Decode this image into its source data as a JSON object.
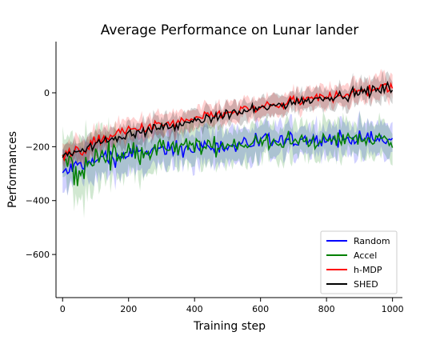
{
  "chart_data": {
    "type": "line",
    "title": "Average Performance on Lunar lander",
    "xlabel": "Training step",
    "ylabel": "Performances",
    "xlim": [
      -20,
      1030
    ],
    "ylim": [
      -760,
      190
    ],
    "xticks": [
      0,
      200,
      400,
      600,
      800,
      1000
    ],
    "yticks": [
      -600,
      -400,
      -200,
      0
    ],
    "xtick_labels": [
      "0",
      "200",
      "400",
      "600",
      "800",
      "1000"
    ],
    "ytick_labels": [
      "−600",
      "−400",
      "−200",
      "0"
    ],
    "grid": false,
    "legend_position": "bottom-right",
    "shaded_band": true,
    "series": [
      {
        "name": "Random",
        "color": "#0000ff",
        "x": [
          0,
          50,
          100,
          150,
          200,
          250,
          300,
          350,
          400,
          450,
          500,
          550,
          600,
          650,
          700,
          750,
          800,
          850,
          900,
          950,
          1000
        ],
        "y": [
          -300,
          -270,
          -250,
          -240,
          -230,
          -220,
          -215,
          -210,
          -205,
          -200,
          -195,
          -190,
          -185,
          -180,
          -180,
          -175,
          -175,
          -170,
          -170,
          -175,
          -175
        ],
        "spread": [
          90,
          90,
          95,
          95,
          95,
          90,
          90,
          90,
          90,
          85,
          85,
          85,
          85,
          80,
          80,
          80,
          80,
          80,
          80,
          80,
          80
        ]
      },
      {
        "name": "Accel",
        "color": "#008000",
        "x": [
          0,
          50,
          100,
          150,
          200,
          250,
          300,
          350,
          400,
          450,
          500,
          550,
          600,
          650,
          700,
          750,
          800,
          850,
          900,
          950,
          1000
        ],
        "y": [
          -250,
          -300,
          -240,
          -230,
          -225,
          -215,
          -210,
          -205,
          -200,
          -195,
          -195,
          -190,
          -185,
          -185,
          -180,
          -180,
          -175,
          -170,
          -170,
          -175,
          -170
        ],
        "spread": [
          120,
          160,
          130,
          120,
          110,
          105,
          100,
          100,
          95,
          95,
          90,
          90,
          90,
          90,
          85,
          85,
          85,
          85,
          85,
          85,
          85
        ]
      },
      {
        "name": "h-MDP",
        "color": "#ff0000",
        "x": [
          0,
          50,
          100,
          150,
          200,
          250,
          300,
          350,
          400,
          450,
          500,
          550,
          600,
          650,
          700,
          750,
          800,
          850,
          900,
          950,
          1000
        ],
        "y": [
          -230,
          -220,
          -180,
          -160,
          -140,
          -130,
          -120,
          -110,
          -100,
          -85,
          -75,
          -65,
          -55,
          -45,
          -35,
          -25,
          -15,
          -5,
          5,
          15,
          20
        ],
        "spread": [
          60,
          60,
          60,
          55,
          55,
          55,
          55,
          55,
          50,
          50,
          50,
          50,
          50,
          50,
          50,
          50,
          55,
          55,
          55,
          60,
          60
        ]
      },
      {
        "name": "SHED",
        "color": "#000000",
        "x": [
          0,
          50,
          100,
          150,
          200,
          250,
          300,
          350,
          400,
          450,
          500,
          550,
          600,
          650,
          700,
          750,
          800,
          850,
          900,
          950,
          1000
        ],
        "y": [
          -240,
          -210,
          -190,
          -170,
          -155,
          -140,
          -130,
          -120,
          -105,
          -95,
          -80,
          -70,
          -60,
          -45,
          -35,
          -25,
          -15,
          -10,
          0,
          10,
          20
        ],
        "spread": [
          60,
          60,
          55,
          55,
          55,
          55,
          55,
          50,
          50,
          50,
          50,
          50,
          50,
          50,
          50,
          50,
          50,
          55,
          55,
          55,
          60
        ]
      }
    ]
  }
}
